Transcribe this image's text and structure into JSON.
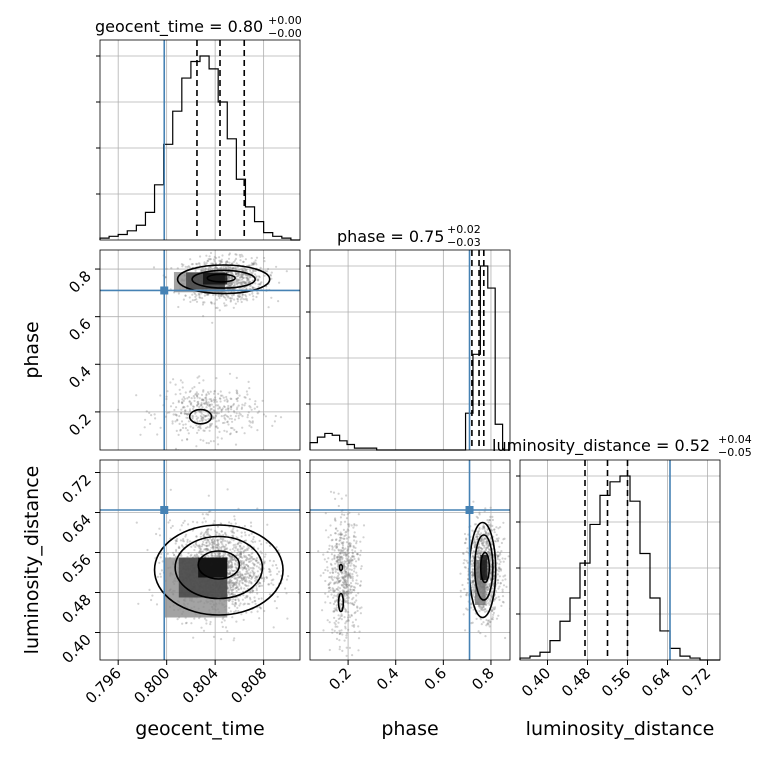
{
  "colors": {
    "truth": "#4682b4",
    "line": "#000000",
    "grid": "#b0b0b0",
    "scatter": "#7f7f7f"
  },
  "titles": {
    "geocent_time": {
      "name": "geocent_time",
      "median": "0.80",
      "plus": "+0.00",
      "minus": "−0.00"
    },
    "phase": {
      "name": "phase",
      "median": "0.75",
      "plus": "+0.02",
      "minus": "−0.03"
    },
    "luminosity_distance": {
      "name": "luminosity_distance",
      "median": "0.52",
      "plus": "+0.04",
      "minus": "−0.05"
    }
  },
  "chart_data": {
    "type": "corner",
    "parameters": [
      "geocent_time",
      "phase",
      "luminosity_distance"
    ],
    "axis_labels": {
      "x": [
        "geocent_time",
        "phase",
        "luminosity_distance"
      ],
      "y": [
        "phase",
        "luminosity_distance"
      ]
    },
    "ranges": {
      "geocent_time": [
        0.7945,
        0.811
      ],
      "phase": [
        0.04,
        0.88
      ],
      "luminosity_distance": [
        0.345,
        0.745
      ]
    },
    "ticks": {
      "geocent_time": [
        "0.796",
        "0.800",
        "0.804",
        "0.808"
      ],
      "phase": [
        "0.2",
        "0.4",
        "0.6",
        "0.8"
      ],
      "luminosity_distance": [
        "0.40",
        "0.48",
        "0.56",
        "0.64",
        "0.72"
      ]
    },
    "truths": {
      "geocent_time": 0.7998,
      "phase": 0.71,
      "luminosity_distance": 0.645
    },
    "quantiles": {
      "geocent_time": [
        0.8025,
        0.8044,
        0.8064
      ],
      "phase": [
        0.72,
        0.75,
        0.77
      ],
      "luminosity_distance": [
        0.475,
        0.52,
        0.56
      ]
    },
    "histograms": {
      "geocent_time": [
        1,
        2,
        3,
        5,
        8,
        15,
        30,
        52,
        70,
        88,
        97,
        100,
        93,
        75,
        55,
        33,
        18,
        10,
        4,
        2,
        1,
        0
      ],
      "phase": [
        4,
        7,
        9,
        8,
        5,
        3,
        1,
        1,
        1,
        0,
        0,
        0,
        0,
        0,
        0,
        0,
        0,
        0,
        0,
        0,
        0,
        20,
        52,
        100,
        88,
        14,
        0
      ],
      "luminosity_distance": [
        1,
        2,
        4,
        10,
        20,
        32,
        50,
        70,
        85,
        92,
        95,
        82,
        55,
        32,
        15,
        6,
        2,
        1,
        0,
        0
      ]
    },
    "densities": [
      {
        "x": "geocent_time",
        "y": "phase",
        "modes": [
          {
            "cx": 0.8047,
            "cy": 0.755,
            "sx": 0.00165,
            "sy": 0.045,
            "n": 1000
          },
          {
            "cx": 0.8035,
            "cy": 0.2,
            "sx": 0.002,
            "sy": 0.055,
            "n": 420
          }
        ],
        "contours": [
          {
            "cx": 0.8047,
            "cy": 0.757,
            "rx": 0.0038,
            "ry": 0.06
          },
          {
            "cx": 0.8047,
            "cy": 0.757,
            "rx": 0.0026,
            "ry": 0.037
          },
          {
            "cx": 0.8045,
            "cy": 0.762,
            "rx": 0.00115,
            "ry": 0.016
          },
          {
            "cx": 0.8028,
            "cy": 0.18,
            "rx": 0.0009,
            "ry": 0.03
          }
        ],
        "blocks": [
          {
            "x": 0.804,
            "y": 0.76,
            "w": 0.002,
            "h": 0.05,
            "shade": 0.05
          },
          {
            "x": 0.8032,
            "y": 0.75,
            "w": 0.0032,
            "h": 0.07,
            "shade": 0.25
          },
          {
            "x": 0.8027,
            "y": 0.745,
            "w": 0.0042,
            "h": 0.085,
            "shade": 0.55
          }
        ]
      },
      {
        "x": "geocent_time",
        "y": "luminosity_distance",
        "modes": [
          {
            "cx": 0.8043,
            "cy": 0.525,
            "sx": 0.002,
            "sy": 0.045,
            "n": 1600
          }
        ],
        "contours": [
          {
            "cx": 0.8043,
            "cy": 0.525,
            "rx": 0.0053,
            "ry": 0.09
          },
          {
            "cx": 0.8043,
            "cy": 0.53,
            "rx": 0.0036,
            "ry": 0.062
          },
          {
            "cx": 0.8043,
            "cy": 0.535,
            "rx": 0.0017,
            "ry": 0.028
          }
        ],
        "blocks": [
          {
            "x": 0.8038,
            "y": 0.53,
            "w": 0.0024,
            "h": 0.04,
            "shade": 0.02
          },
          {
            "x": 0.803,
            "y": 0.51,
            "w": 0.004,
            "h": 0.08,
            "shade": 0.25
          },
          {
            "x": 0.8024,
            "y": 0.49,
            "w": 0.0052,
            "h": 0.12,
            "shade": 0.55
          }
        ]
      },
      {
        "x": "phase",
        "y": "luminosity_distance",
        "modes": [
          {
            "cx": 0.77,
            "cy": 0.525,
            "sx": 0.035,
            "sy": 0.045,
            "n": 1000
          },
          {
            "cx": 0.18,
            "cy": 0.51,
            "sx": 0.035,
            "sy": 0.06,
            "n": 600
          }
        ],
        "contours": [
          {
            "cx": 0.765,
            "cy": 0.525,
            "rx": 0.055,
            "ry": 0.095
          },
          {
            "cx": 0.77,
            "cy": 0.53,
            "rx": 0.038,
            "ry": 0.065
          },
          {
            "cx": 0.775,
            "cy": 0.53,
            "rx": 0.018,
            "ry": 0.03
          },
          {
            "cx": 0.17,
            "cy": 0.46,
            "rx": 0.01,
            "ry": 0.018
          },
          {
            "cx": 0.17,
            "cy": 0.53,
            "rx": 0.006,
            "ry": 0.006
          }
        ],
        "blocks": [
          {
            "x": 0.77,
            "y": 0.53,
            "w": 0.03,
            "h": 0.05,
            "shade": 0.05
          },
          {
            "x": 0.755,
            "y": 0.5,
            "w": 0.045,
            "h": 0.09,
            "shade": 0.45
          }
        ]
      }
    ]
  }
}
